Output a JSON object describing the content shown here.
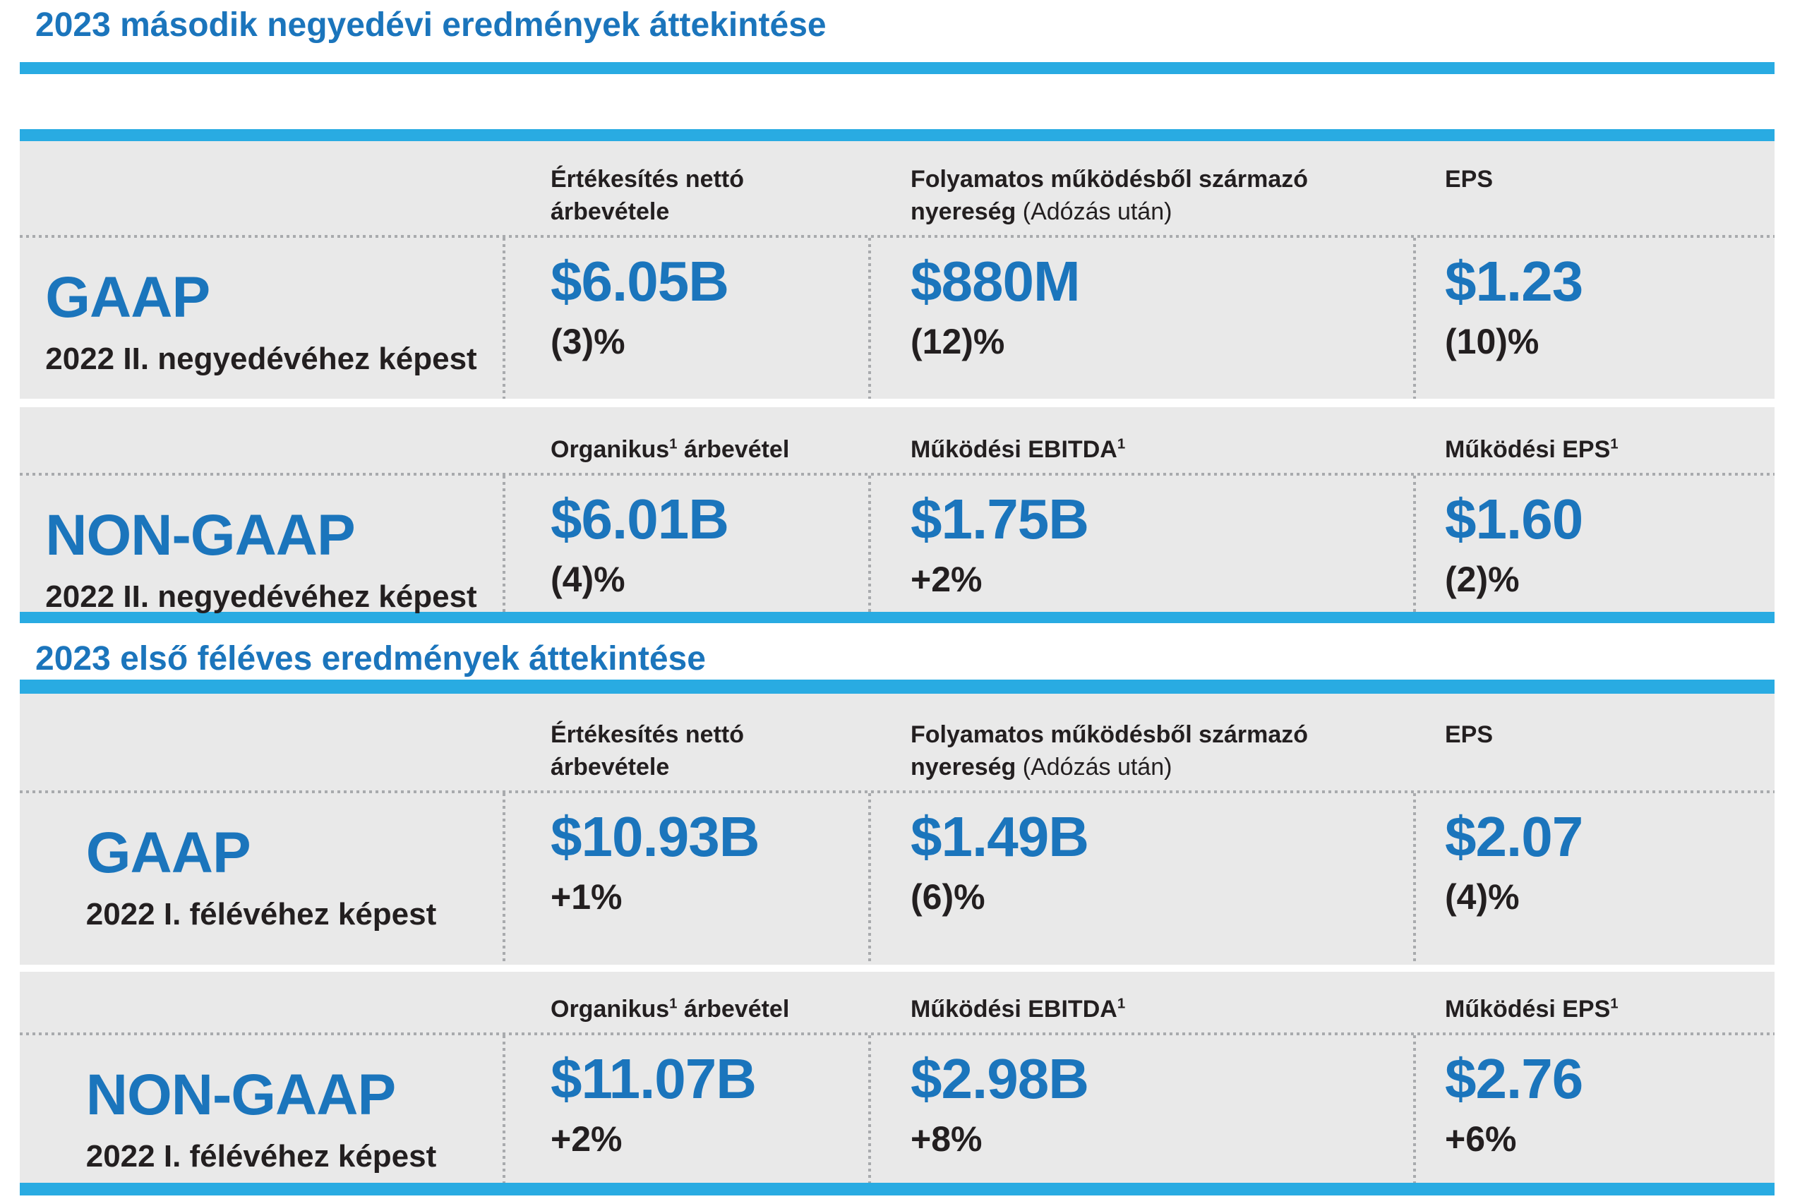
{
  "colors": {
    "accent_dark": "#1b75bc",
    "accent_light": "#29abe2",
    "text": "#231f20",
    "table_background": "#e9e9e9",
    "dotted_line": "#a8aaad"
  },
  "sections": [
    {
      "title": "2023 második negyedévi eredmények áttekintése",
      "groups": [
        {
          "headers": {
            "c1": [
              [
                {
                  "t": "Értékesítés nettó"
                }
              ],
              [
                {
                  "t": "árbevétele"
                }
              ]
            ],
            "c2": [
              [
                {
                  "t": "Folyamatos működésből származó"
                }
              ],
              [
                {
                  "t": "nyereség "
                },
                {
                  "t": "(Adózás után)",
                  "light": true
                }
              ]
            ],
            "c3": [
              [
                {
                  "t": "EPS"
                }
              ]
            ]
          },
          "row": {
            "label": "GAAP",
            "sublabel": "2022 II. negyedévéhez képest",
            "values": [
              {
                "value": "$6.05B",
                "change": "(3)%"
              },
              {
                "value": "$880M",
                "change": "(12)%"
              },
              {
                "value": "$1.23",
                "change": "(10)%"
              }
            ]
          }
        },
        {
          "headers": {
            "c1": [
              [
                {
                  "t": "Organikus"
                },
                {
                  "t": "1",
                  "sup": true
                },
                {
                  "t": " árbevétel"
                }
              ]
            ],
            "c2": [
              [
                {
                  "t": "Működési EBITDA"
                },
                {
                  "t": "1",
                  "sup": true
                }
              ]
            ],
            "c3": [
              [
                {
                  "t": "Működési EPS"
                },
                {
                  "t": "1",
                  "sup": true
                }
              ]
            ]
          },
          "row": {
            "label": "NON-GAAP",
            "sublabel": "2022 II. negyedévéhez képest",
            "values": [
              {
                "value": "$6.01B",
                "change": "(4)%"
              },
              {
                "value": "$1.75B",
                "change": "+2%"
              },
              {
                "value": "$1.60",
                "change": "(2)%"
              }
            ]
          }
        }
      ]
    },
    {
      "title": "2023 első féléves eredmények áttekintése",
      "groups": [
        {
          "headers": {
            "c1": [
              [
                {
                  "t": "Értékesítés nettó"
                }
              ],
              [
                {
                  "t": "árbevétele"
                }
              ]
            ],
            "c2": [
              [
                {
                  "t": "Folyamatos működésből származó"
                }
              ],
              [
                {
                  "t": "nyereség "
                },
                {
                  "t": "(Adózás után)",
                  "light": true
                }
              ]
            ],
            "c3": [
              [
                {
                  "t": "EPS"
                }
              ]
            ]
          },
          "row": {
            "label": "GAAP",
            "sublabel": "2022 I. félévéhez képest",
            "values": [
              {
                "value": "$10.93B",
                "change": "+1%"
              },
              {
                "value": "$1.49B",
                "change": "(6)%"
              },
              {
                "value": "$2.07",
                "change": "(4)%"
              }
            ]
          }
        },
        {
          "headers": {
            "c1": [
              [
                {
                  "t": "Organikus"
                },
                {
                  "t": "1",
                  "sup": true
                },
                {
                  "t": " árbevétel"
                }
              ]
            ],
            "c2": [
              [
                {
                  "t": "Működési EBITDA"
                },
                {
                  "t": "1",
                  "sup": true
                }
              ]
            ],
            "c3": [
              [
                {
                  "t": "Működési EPS"
                },
                {
                  "t": "1",
                  "sup": true
                }
              ]
            ]
          },
          "row": {
            "label": "NON-GAAP",
            "sublabel": "2022 I. félévéhez képest",
            "values": [
              {
                "value": "$11.07B",
                "change": "+2%"
              },
              {
                "value": "$2.98B",
                "change": "+8%"
              },
              {
                "value": "$2.76",
                "change": "+6%"
              }
            ]
          }
        }
      ]
    }
  ]
}
